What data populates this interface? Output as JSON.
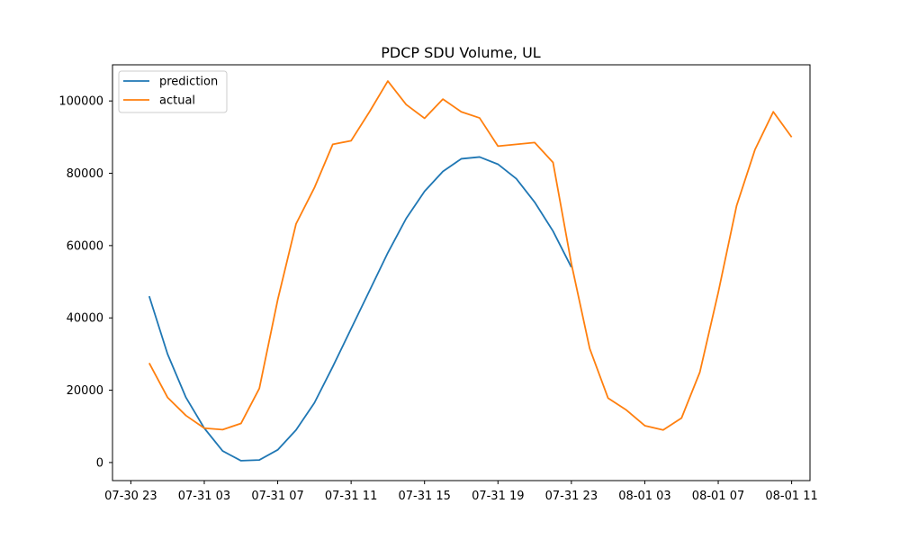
{
  "chart_data": {
    "type": "line",
    "title": "PDCP SDU Volume, UL",
    "xlabel": "",
    "ylabel": "",
    "x_axis_type": "datetime",
    "xlim": [
      "2020-07-30 22:00",
      "2020-08-01 12:00"
    ],
    "x_tick_labels": [
      "07-30 23",
      "07-31 03",
      "07-31 07",
      "07-31 11",
      "07-31 15",
      "07-31 19",
      "07-31 23",
      "08-01 03",
      "08-01 07",
      "08-01 11"
    ],
    "x_ticks": [
      "2020-07-30 23:00",
      "2020-07-31 03:00",
      "2020-07-31 07:00",
      "2020-07-31 11:00",
      "2020-07-31 15:00",
      "2020-07-31 19:00",
      "2020-07-31 23:00",
      "2020-08-01 03:00",
      "2020-08-01 07:00",
      "2020-08-01 11:00"
    ],
    "ylim": [
      -5000,
      110000
    ],
    "y_ticks": [
      0,
      20000,
      40000,
      60000,
      80000,
      100000
    ],
    "y_tick_labels": [
      "0",
      "20000",
      "40000",
      "60000",
      "80000",
      "100000"
    ],
    "legend_position": "top-left",
    "grid": false,
    "series": [
      {
        "name": "prediction",
        "color": "#1f77b4",
        "x": [
          "2020-07-31 00:00",
          "2020-07-31 01:00",
          "2020-07-31 02:00",
          "2020-07-31 03:00",
          "2020-07-31 04:00",
          "2020-07-31 05:00",
          "2020-07-31 06:00",
          "2020-07-31 07:00",
          "2020-07-31 08:00",
          "2020-07-31 09:00",
          "2020-07-31 10:00",
          "2020-07-31 11:00",
          "2020-07-31 12:00",
          "2020-07-31 13:00",
          "2020-07-31 14:00",
          "2020-07-31 15:00",
          "2020-07-31 16:00",
          "2020-07-31 17:00",
          "2020-07-31 18:00",
          "2020-07-31 19:00",
          "2020-07-31 20:00",
          "2020-07-31 21:00",
          "2020-07-31 22:00",
          "2020-07-31 23:00"
        ],
        "values": [
          46000,
          30000,
          18000,
          9500,
          3200,
          500,
          700,
          3500,
          9000,
          16500,
          26500,
          37000,
          47500,
          58000,
          67500,
          75000,
          80500,
          84000,
          84500,
          82500,
          78500,
          72000,
          64000,
          54000
        ]
      },
      {
        "name": "actual",
        "color": "#ff7f0e",
        "x": [
          "2020-07-31 00:00",
          "2020-07-31 01:00",
          "2020-07-31 02:00",
          "2020-07-31 03:00",
          "2020-07-31 04:00",
          "2020-07-31 05:00",
          "2020-07-31 06:00",
          "2020-07-31 07:00",
          "2020-07-31 08:00",
          "2020-07-31 09:00",
          "2020-07-31 10:00",
          "2020-07-31 11:00",
          "2020-07-31 12:00",
          "2020-07-31 13:00",
          "2020-07-31 14:00",
          "2020-07-31 15:00",
          "2020-07-31 16:00",
          "2020-07-31 17:00",
          "2020-07-31 18:00",
          "2020-07-31 19:00",
          "2020-07-31 20:00",
          "2020-07-31 21:00",
          "2020-07-31 22:00",
          "2020-07-31 23:00",
          "2020-08-01 00:00",
          "2020-08-01 01:00",
          "2020-08-01 02:00",
          "2020-08-01 03:00",
          "2020-08-01 04:00",
          "2020-08-01 05:00",
          "2020-08-01 06:00",
          "2020-08-01 07:00",
          "2020-08-01 08:00",
          "2020-08-01 09:00",
          "2020-08-01 10:00",
          "2020-08-01 11:00"
        ],
        "values": [
          27500,
          18000,
          13000,
          9500,
          9100,
          10800,
          20500,
          45000,
          66000,
          76000,
          88000,
          89000,
          97000,
          105500,
          99000,
          95200,
          100500,
          97000,
          95300,
          87500,
          88000,
          88500,
          83000,
          55000,
          31500,
          17800,
          14500,
          10200,
          9000,
          12300,
          25000,
          47000,
          71000,
          86500,
          97000,
          90000
        ]
      }
    ]
  }
}
